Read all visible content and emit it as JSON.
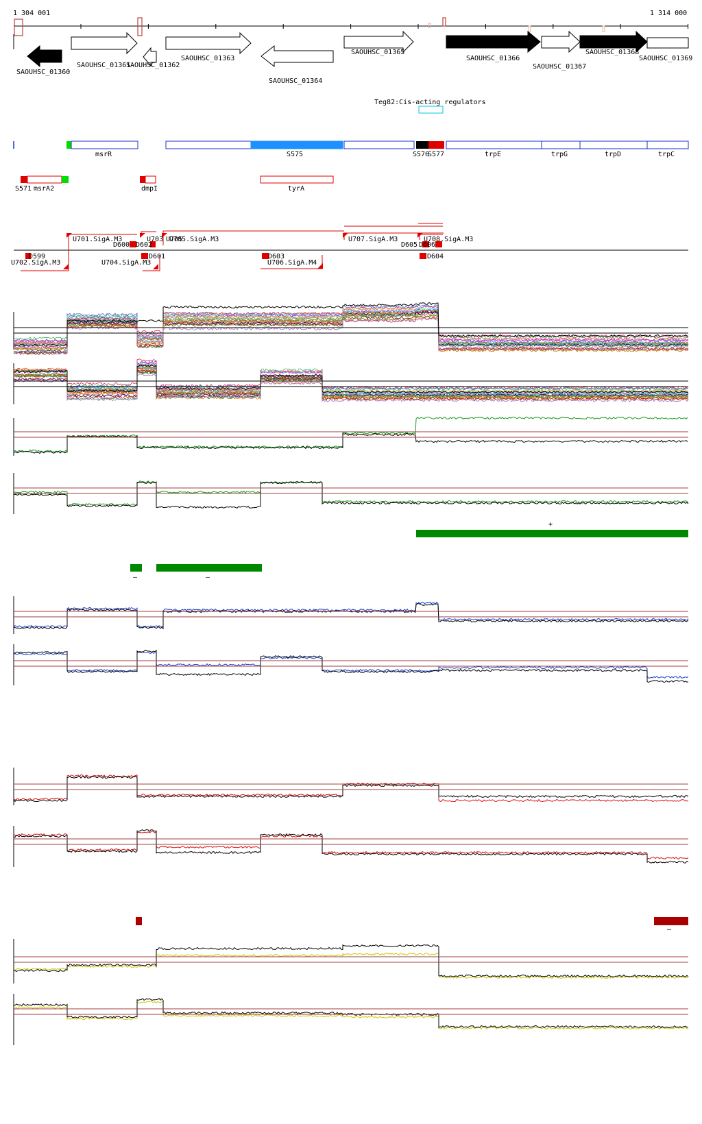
{
  "coords": {
    "start": "1 304 001",
    "end": "1 314 000"
  },
  "colors": {
    "gene_outline": "#000000",
    "gene_fill": "#000000",
    "feature_blue": "#1a33cc",
    "feature_blue_fill": "#1e90ff",
    "feature_red": "#e00000",
    "feature_green": "#00dd00",
    "cis": "#00c8d8",
    "band_green": "#008800",
    "band_red": "#aa0000",
    "blue_trace": "#1a3fd0",
    "red_trace": "#d81010",
    "green_trace": "#1a9a1a",
    "yellow_trace": "#c8c800",
    "threshold": "#a04040"
  },
  "genes": [
    {
      "label": "SAOUHSC_01360"
    },
    {
      "label": "SAOUHSC_01361"
    },
    {
      "label": "SAOUHSC_01362"
    },
    {
      "label": "SAOUHSC_01363"
    },
    {
      "label": "SAOUHSC_01364"
    },
    {
      "label": "SAOUHSC_01365"
    },
    {
      "label": "SAOUHSC_01366"
    },
    {
      "label": "SAOUHSC_01367"
    },
    {
      "label": "SAOUHSC_01368"
    },
    {
      "label": "SAOUHSC_01369"
    }
  ],
  "cis_regulator": "Teg82:Cis-acting regulators",
  "features_row1": [
    "msrR",
    "S575",
    "S576",
    "S577",
    "trpE",
    "trpG",
    "trpD",
    "trpC"
  ],
  "features_row2": [
    "S571",
    "msrA2",
    "dmpI",
    "tyrA"
  ],
  "promoters": [
    "U701.SigA.M3",
    "U702.SigA.M3",
    "U703",
    "U704.SigA.M3",
    "U705",
    "U705.SigA.M3",
    "U706.SigA.M4",
    "U707.SigA.M3",
    "U708.SigA.M3",
    "D599",
    "D600",
    "D601",
    "D602",
    "D603",
    "D604",
    "D605",
    "D606"
  ],
  "band_markers": {
    "plus": "+",
    "minus": "–"
  }
}
